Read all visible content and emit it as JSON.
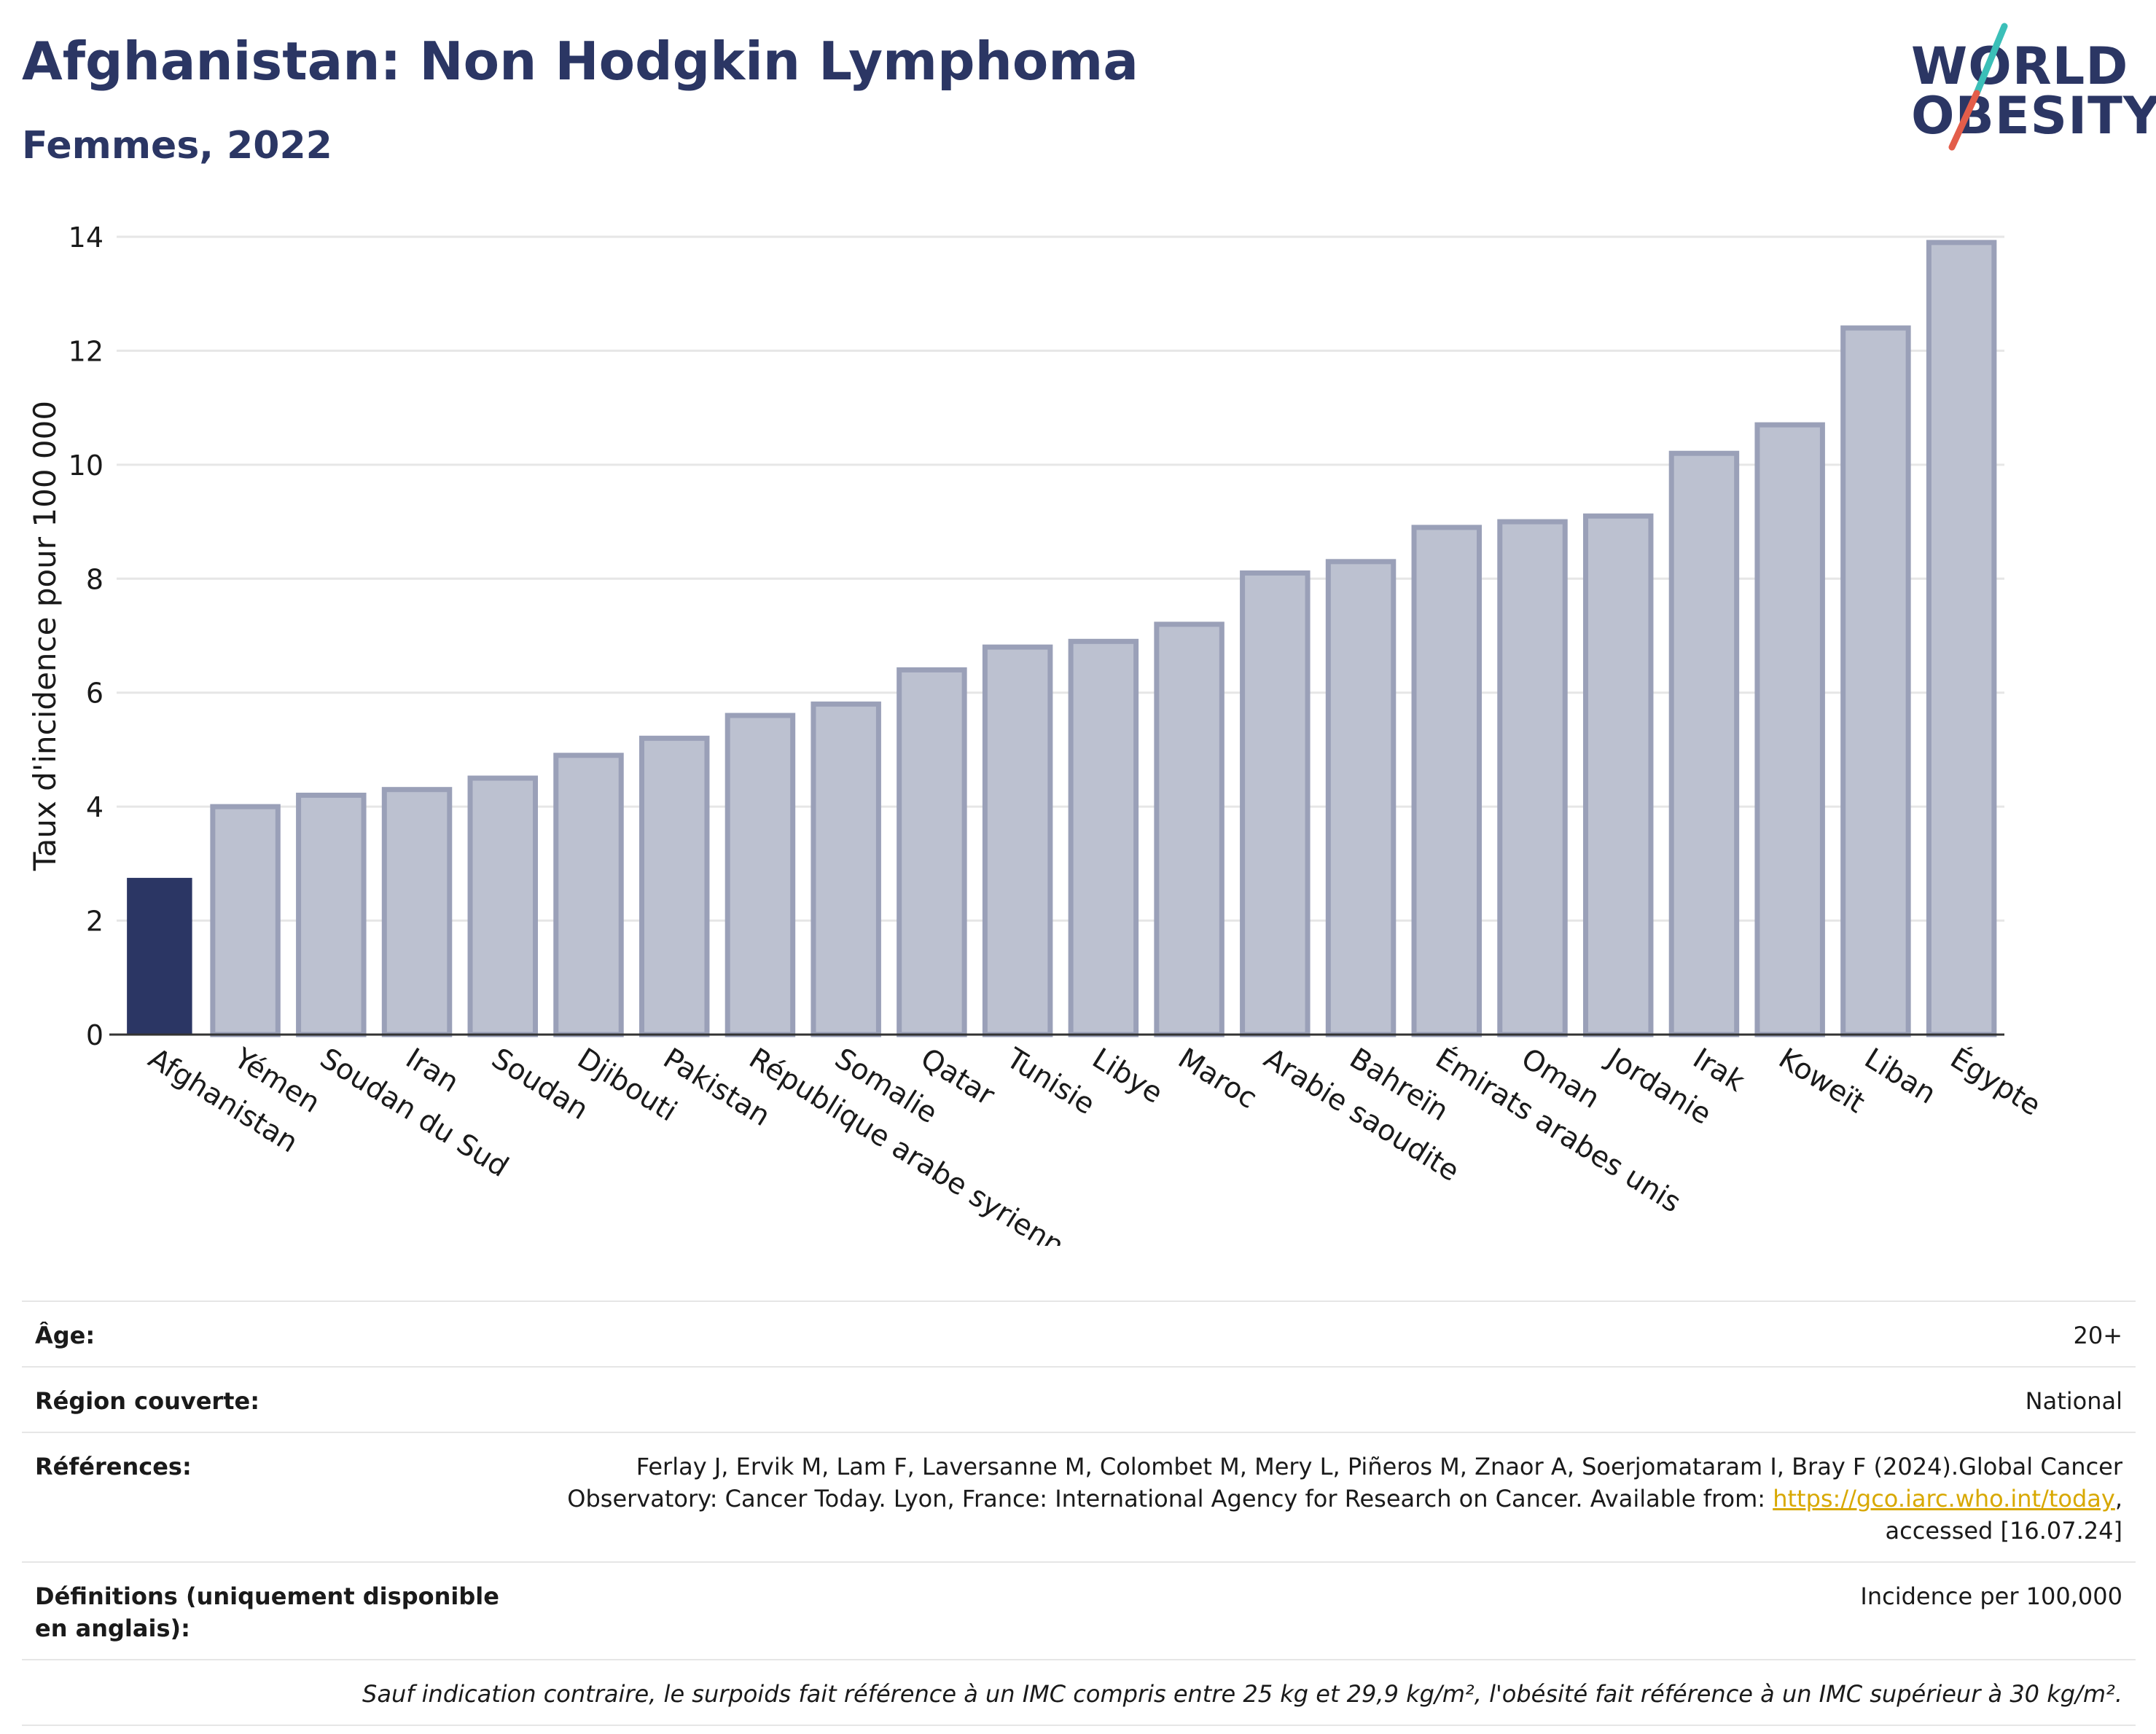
{
  "header": {
    "title": "Afghanistan: Non Hodgkin Lymphoma",
    "subtitle": "Femmes, 2022"
  },
  "logo": {
    "line1": "WORLD",
    "line2": "OBESITY",
    "slash_colors": [
      "#3bbfb8",
      "#e35d4a"
    ]
  },
  "chart_data": {
    "type": "bar",
    "title": "Afghanistan: Non Hodgkin Lymphoma",
    "subtitle": "Femmes, 2022",
    "xlabel": "",
    "ylabel": "Taux d'incidence pour 100 000",
    "ylim": [
      0,
      14
    ],
    "yticks": [
      0,
      2,
      4,
      6,
      8,
      10,
      12,
      14
    ],
    "grid": true,
    "highlight_category": "Afghanistan",
    "colors": {
      "highlight": "#2b3664",
      "other_fill": "#bcc1d0",
      "other_border": "#9aa0b8"
    },
    "categories": [
      "Afghanistan",
      "Yémen",
      "Soudan du Sud",
      "Iran",
      "Soudan",
      "Djibouti",
      "Pakistan",
      "République arabe syrienne",
      "Somalie",
      "Qatar",
      "Tunisie",
      "Libye",
      "Maroc",
      "Arabie saoudite",
      "Bahreïn",
      "Émirats arabes unis",
      "Oman",
      "Jordanie",
      "Irak",
      "Koweït",
      "Liban",
      "Égypte"
    ],
    "values": [
      2.75,
      4.0,
      4.2,
      4.3,
      4.5,
      4.9,
      5.2,
      5.6,
      5.8,
      6.4,
      6.8,
      6.9,
      7.2,
      8.1,
      8.3,
      8.9,
      9.0,
      9.1,
      10.2,
      10.7,
      12.4,
      13.9
    ]
  },
  "meta": {
    "age_label": "Âge:",
    "age_value": "20+",
    "region_label": "Région couverte:",
    "region_value": "National",
    "refs_label": "Références:",
    "refs_text_1": "Ferlay J, Ervik M, Lam F, Laversanne M, Colombet M, Mery L, Piñeros M, Znaor A, Soerjomataram I, Bray F (2024).Global Cancer Observatory: Cancer Today. Lyon, France: International Agency for Research on Cancer. Available from: ",
    "refs_link": "https://gco.iarc.who.int/today",
    "refs_text_2": ", accessed [16.07.24]",
    "definitions_label": "Définitions (uniquement disponible en anglais):",
    "definitions_value": "Incidence per 100,000",
    "note": "Sauf indication contraire, le surpoids fait référence à un IMC compris entre 25 kg et 29,9 kg/m², l'obésité fait référence à un IMC supérieur à 30 kg/m²."
  }
}
